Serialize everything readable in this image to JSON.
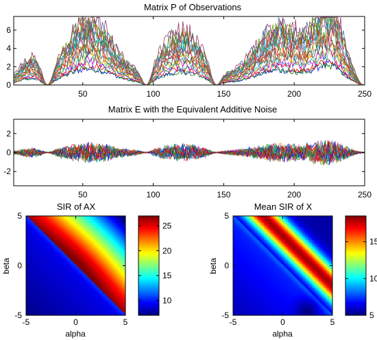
{
  "chart_data": [
    {
      "type": "line",
      "title": "Matrix P of Observations",
      "xlim": [
        1,
        250
      ],
      "ylim": [
        0,
        7.5
      ],
      "xticks": [
        50,
        100,
        150,
        200,
        250
      ],
      "yticks": [
        0,
        2,
        4,
        6
      ],
      "x_range": [
        1,
        250
      ],
      "series_count": 20,
      "envelope_description": "nonnegative signals shaped by bumps",
      "bumps": [
        {
          "center": 13,
          "width": 12,
          "peak": 1.8
        },
        {
          "center": 55,
          "width": 24,
          "peak": 5.0
        },
        {
          "center": 120,
          "width": 22,
          "peak": 4.0
        },
        {
          "center": 190,
          "width": 26,
          "peak": 4.5
        },
        {
          "center": 225,
          "width": 14,
          "peak": 5.5
        }
      ],
      "zeros_near": [
        25,
        95,
        145,
        250
      ]
    },
    {
      "type": "line",
      "title": "Matrix E with the Equivalent Additive Noise",
      "xlim": [
        1,
        250
      ],
      "ylim": [
        -3.5,
        3.5
      ],
      "xticks": [
        50,
        100,
        150,
        200,
        250
      ],
      "yticks": [
        -2,
        0,
        2
      ],
      "series_count": 20
    },
    {
      "type": "heatmap",
      "title": "SIR of AX",
      "xlabel": "alpha",
      "ylabel": "beta",
      "xlim": [
        -5,
        5
      ],
      "ylim": [
        -5,
        5
      ],
      "xticks": [
        -5,
        0,
        5
      ],
      "yticks": [
        -5,
        0,
        5
      ],
      "colorbar": {
        "min": 7,
        "max": 27,
        "ticks": [
          10,
          15,
          20,
          25
        ]
      }
    },
    {
      "type": "heatmap",
      "title": "Mean SIR of X",
      "xlabel": "alpha",
      "ylabel": "beta",
      "xlim": [
        -5,
        5
      ],
      "ylim": [
        -5,
        5
      ],
      "xticks": [
        -5,
        0,
        5
      ],
      "yticks": [
        -5,
        0,
        5
      ],
      "colorbar": {
        "min": 5,
        "max": 18.5,
        "ticks": [
          5,
          10,
          15
        ]
      }
    }
  ],
  "palette": [
    "#0000ff",
    "#008000",
    "#ff0000",
    "#00bfbf",
    "#bf00bf",
    "#bfbf00",
    "#404040",
    "#1f77b4",
    "#ff7f0e",
    "#2ca02c",
    "#d62728",
    "#9467bd",
    "#8c564b",
    "#e377c2",
    "#17becf",
    "#009999",
    "#cc3300",
    "#336699",
    "#669900",
    "#993366"
  ]
}
